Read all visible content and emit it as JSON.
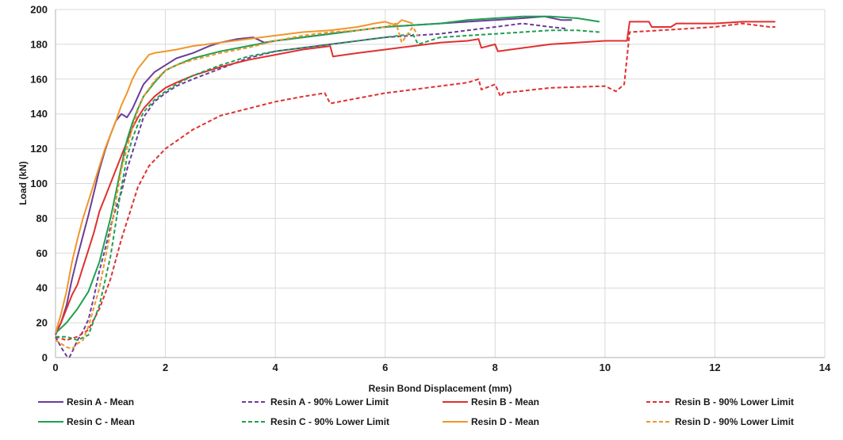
{
  "chart_data": {
    "type": "line",
    "title": "",
    "xlabel": "Resin Bond Displacement (mm)",
    "ylabel": "Load (kN)",
    "xlim": [
      0,
      14
    ],
    "ylim": [
      0,
      200
    ],
    "xticks": [
      0,
      2,
      4,
      6,
      8,
      10,
      12,
      14
    ],
    "yticks": [
      0,
      20,
      40,
      60,
      80,
      100,
      120,
      140,
      160,
      180,
      200
    ],
    "grid": true,
    "legend_position": "bottom",
    "series": [
      {
        "name": "Resin A - Mean",
        "color": "#6a3d9a",
        "dash": "solid",
        "x": [
          0,
          0.1,
          0.2,
          0.3,
          0.4,
          0.5,
          0.6,
          0.7,
          0.8,
          0.9,
          1.0,
          1.1,
          1.2,
          1.3,
          1.4,
          1.5,
          1.6,
          1.8,
          2.0,
          2.2,
          2.5,
          2.8,
          3.0,
          3.3,
          3.6,
          3.8,
          4.0,
          4.5,
          5.0,
          5.5,
          6.0,
          6.5,
          7.0,
          7.5,
          8.0,
          8.5,
          8.9,
          9.2,
          9.4
        ],
        "y": [
          13,
          20,
          30,
          45,
          58,
          70,
          82,
          95,
          108,
          119,
          128,
          136,
          140,
          138,
          143,
          150,
          157,
          164,
          168,
          172,
          175,
          179,
          181,
          183,
          184,
          181,
          182,
          184,
          186,
          188,
          190,
          191,
          192,
          193,
          194,
          195,
          196,
          194,
          194
        ]
      },
      {
        "name": "Resin A - 90% Lower Limit",
        "color": "#6a3d9a",
        "dash": "dashed",
        "x": [
          0,
          0.1,
          0.2,
          0.25,
          0.3,
          0.4,
          0.5,
          0.6,
          0.7,
          0.8,
          0.9,
          1.0,
          1.1,
          1.2,
          1.3,
          1.4,
          1.5,
          1.6,
          1.8,
          2.0,
          2.2,
          2.5,
          3.0,
          3.5,
          4.0,
          4.5,
          5.0,
          5.5,
          6.0,
          6.5,
          7.0,
          7.5,
          8.0,
          8.5,
          9.0,
          9.3
        ],
        "y": [
          12,
          6,
          1,
          0,
          3,
          10,
          15,
          22,
          35,
          50,
          62,
          75,
          86,
          95,
          108,
          118,
          128,
          138,
          147,
          152,
          156,
          160,
          166,
          172,
          176,
          178,
          180,
          182,
          184,
          185,
          186,
          188,
          190,
          192,
          190,
          189
        ]
      },
      {
        "name": "Resin B - Mean",
        "color": "#e03030",
        "dash": "solid",
        "x": [
          0,
          0.1,
          0.2,
          0.3,
          0.4,
          0.5,
          0.6,
          0.7,
          0.8,
          0.9,
          1.0,
          1.1,
          1.2,
          1.3,
          1.4,
          1.5,
          1.6,
          1.8,
          2.0,
          2.2,
          2.5,
          3.0,
          3.5,
          4.0,
          4.5,
          5.0,
          5.05,
          5.5,
          6.0,
          6.5,
          7.0,
          7.5,
          7.7,
          7.75,
          8.0,
          8.05,
          9.0,
          10.0,
          10.4,
          10.45,
          10.8,
          10.85,
          11.2,
          11.3,
          12.0,
          12.5,
          13.1
        ],
        "y": [
          14,
          20,
          28,
          36,
          42,
          52,
          62,
          72,
          84,
          92,
          100,
          108,
          116,
          124,
          132,
          138,
          143,
          150,
          155,
          158,
          162,
          167,
          171,
          174,
          177,
          179,
          173,
          175,
          177,
          179,
          181,
          182,
          183,
          178,
          180,
          176,
          180,
          182,
          182,
          193,
          193,
          190,
          190,
          192,
          192,
          193,
          193
        ]
      },
      {
        "name": "Resin B - 90% Lower Limit",
        "color": "#e03030",
        "dash": "dashed",
        "x": [
          0,
          0.2,
          0.4,
          0.6,
          0.8,
          1.0,
          1.2,
          1.4,
          1.5,
          1.7,
          2.0,
          2.5,
          3.0,
          3.5,
          4.0,
          4.5,
          4.9,
          5.0,
          5.5,
          6.0,
          6.5,
          7.0,
          7.5,
          7.7,
          7.75,
          8.0,
          8.1,
          8.15,
          9.0,
          10.0,
          10.2,
          10.35,
          10.45,
          11.0,
          12.0,
          12.5,
          13.0,
          13.1
        ],
        "y": [
          12,
          10,
          12,
          16,
          28,
          45,
          68,
          88,
          98,
          110,
          120,
          131,
          139,
          143,
          147,
          150,
          152,
          146,
          149,
          152,
          154,
          156,
          158,
          160,
          154,
          157,
          150,
          152,
          155,
          156,
          153,
          157,
          187,
          188,
          190,
          192,
          190,
          190
        ]
      },
      {
        "name": "Resin C - Mean",
        "color": "#1ea050",
        "dash": "solid",
        "x": [
          0,
          0.2,
          0.4,
          0.6,
          0.8,
          1.0,
          1.1,
          1.2,
          1.3,
          1.4,
          1.5,
          1.6,
          1.8,
          2.0,
          2.2,
          2.5,
          3.0,
          3.5,
          4.0,
          4.5,
          5.0,
          5.5,
          6.0,
          6.5,
          7.0,
          7.5,
          8.0,
          8.5,
          9.0,
          9.5,
          9.9
        ],
        "y": [
          14,
          20,
          28,
          38,
          55,
          80,
          95,
          110,
          125,
          135,
          143,
          150,
          158,
          165,
          168,
          172,
          176,
          179,
          182,
          184,
          186,
          188,
          190,
          191,
          192,
          194,
          195,
          196,
          196,
          195,
          193
        ]
      },
      {
        "name": "Resin C - 90% Lower Limit",
        "color": "#1ea050",
        "dash": "dashed",
        "x": [
          0,
          0.2,
          0.4,
          0.6,
          0.8,
          1.0,
          1.1,
          1.2,
          1.3,
          1.4,
          1.5,
          1.6,
          1.8,
          2.0,
          2.2,
          2.5,
          3.0,
          3.5,
          4.0,
          4.5,
          5.0,
          5.5,
          6.0,
          6.5,
          6.6,
          7.0,
          7.5,
          8.0,
          8.5,
          9.0,
          9.5,
          9.9
        ],
        "y": [
          12,
          12,
          10,
          13,
          30,
          58,
          78,
          98,
          115,
          126,
          134,
          141,
          148,
          153,
          157,
          162,
          168,
          173,
          176,
          178,
          180,
          182,
          184,
          186,
          180,
          184,
          185,
          186,
          187,
          188,
          188,
          187
        ]
      },
      {
        "name": "Resin D - Mean",
        "color": "#f0962a",
        "dash": "solid",
        "x": [
          0,
          0.1,
          0.2,
          0.3,
          0.4,
          0.5,
          0.6,
          0.7,
          0.8,
          0.9,
          1.0,
          1.1,
          1.2,
          1.3,
          1.4,
          1.5,
          1.6,
          1.7,
          1.8,
          2.0,
          2.2,
          2.5,
          3.0,
          3.5,
          4.0,
          4.5,
          5.0,
          5.5,
          5.8,
          6.0,
          6.2,
          6.3,
          6.5
        ],
        "y": [
          14,
          25,
          38,
          55,
          68,
          80,
          90,
          100,
          110,
          120,
          128,
          136,
          145,
          152,
          160,
          166,
          170,
          174,
          175,
          176,
          177,
          179,
          181,
          183,
          185,
          187,
          188,
          190,
          192,
          193,
          191,
          194,
          192
        ]
      },
      {
        "name": "Resin D - 90% Lower Limit",
        "color": "#f0962a",
        "dash": "dashed",
        "x": [
          0,
          0.2,
          0.3,
          0.4,
          0.5,
          0.6,
          0.8,
          1.0,
          1.2,
          1.4,
          1.5,
          1.6,
          1.8,
          2.0,
          2.2,
          2.5,
          3.0,
          3.5,
          4.0,
          4.5,
          5.0,
          5.5,
          6.0,
          6.2,
          6.3,
          6.5,
          6.6
        ],
        "y": [
          10,
          6,
          5,
          8,
          10,
          18,
          40,
          72,
          108,
          132,
          142,
          150,
          159,
          165,
          168,
          171,
          175,
          178,
          182,
          185,
          187,
          188,
          190,
          192,
          181,
          190,
          185
        ]
      }
    ]
  }
}
